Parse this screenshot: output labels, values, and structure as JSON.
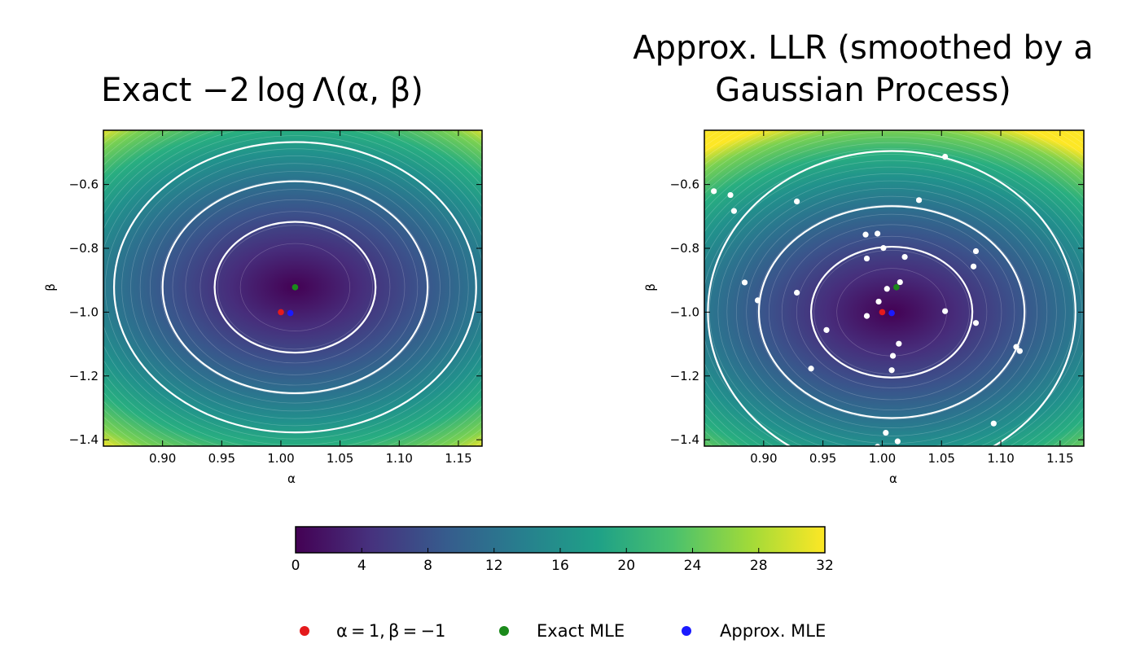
{
  "chart_data": [
    {
      "type": "heatmap",
      "title": "Exact −2 log Λ(α, β)",
      "xlabel": "α",
      "ylabel": "β",
      "xlim": [
        0.85,
        1.17
      ],
      "ylim": [
        -1.42,
        -0.43
      ],
      "xticks": [
        "0.90",
        "0.95",
        "1.00",
        "1.05",
        "1.10",
        "1.15"
      ],
      "yticks": [
        "−0.6",
        "−0.8",
        "−1.0",
        "−1.2",
        "−1.4"
      ],
      "field_center": {
        "alpha": 1.012,
        "beta": -0.922
      },
      "confidence_contours": [
        {
          "alpha_halfwidth": 0.068,
          "beta_halfwidth": 0.205
        },
        {
          "alpha_halfwidth": 0.112,
          "beta_halfwidth": 0.332
        },
        {
          "alpha_halfwidth": 0.153,
          "beta_halfwidth": 0.455
        }
      ],
      "points": [
        {
          "name": "truth",
          "alpha": 1.0,
          "beta": -1.0,
          "color": "#e41a1c"
        },
        {
          "name": "exact-mle",
          "alpha": 1.012,
          "beta": -0.922,
          "color": "#1b8a1b"
        },
        {
          "name": "approx-mle",
          "alpha": 1.008,
          "beta": -1.003,
          "color": "#1a1aff"
        }
      ]
    },
    {
      "type": "heatmap",
      "title_lines": [
        "Approx. LLR (smoothed by a",
        "Gaussian Process)"
      ],
      "xlabel": "α",
      "ylabel": "β",
      "xlim": [
        0.85,
        1.17
      ],
      "ylim": [
        -1.42,
        -0.43
      ],
      "xticks": [
        "0.90",
        "0.95",
        "1.00",
        "1.05",
        "1.10",
        "1.15"
      ],
      "yticks": [
        "−0.6",
        "−0.8",
        "−1.0",
        "−1.2",
        "−1.4"
      ],
      "field_center": {
        "alpha": 1.008,
        "beta": -1.0
      },
      "confidence_contours": [
        {
          "alpha_halfwidth": 0.068,
          "beta_halfwidth": 0.205
        },
        {
          "alpha_halfwidth": 0.112,
          "beta_halfwidth": 0.332
        },
        {
          "alpha_halfwidth": 0.155,
          "beta_halfwidth": 0.505
        }
      ],
      "sample_points": [
        [
          1.053,
          -0.513
        ],
        [
          0.858,
          -0.621
        ],
        [
          0.872,
          -0.633
        ],
        [
          0.875,
          -0.683
        ],
        [
          0.928,
          -0.653
        ],
        [
          1.031,
          -0.649
        ],
        [
          0.986,
          -0.757
        ],
        [
          0.996,
          -0.754
        ],
        [
          1.001,
          -0.799
        ],
        [
          1.079,
          -0.809
        ],
        [
          0.987,
          -0.832
        ],
        [
          1.019,
          -0.827
        ],
        [
          1.077,
          -0.857
        ],
        [
          0.884,
          -0.907
        ],
        [
          1.015,
          -0.906
        ],
        [
          1.004,
          -0.927
        ],
        [
          0.928,
          -0.939
        ],
        [
          0.895,
          -0.963
        ],
        [
          0.997,
          -0.967
        ],
        [
          1.053,
          -0.997
        ],
        [
          0.987,
          -1.012
        ],
        [
          1.079,
          -1.034
        ],
        [
          0.953,
          -1.056
        ],
        [
          1.014,
          -1.099
        ],
        [
          1.113,
          -1.109
        ],
        [
          1.116,
          -1.122
        ],
        [
          1.009,
          -1.137
        ],
        [
          0.94,
          -1.177
        ],
        [
          1.008,
          -1.182
        ],
        [
          1.094,
          -1.349
        ],
        [
          1.003,
          -1.378
        ],
        [
          1.013,
          -1.405
        ],
        [
          0.996,
          -1.422
        ]
      ],
      "points": [
        {
          "name": "truth",
          "alpha": 1.0,
          "beta": -1.0,
          "color": "#e41a1c"
        },
        {
          "name": "exact-mle",
          "alpha": 1.012,
          "beta": -0.922,
          "color": "#1b8a1b"
        },
        {
          "name": "approx-mle",
          "alpha": 1.008,
          "beta": -1.003,
          "color": "#1a1aff"
        }
      ]
    }
  ],
  "colorbar": {
    "range": [
      0,
      32
    ],
    "ticks": [
      "0",
      "4",
      "8",
      "12",
      "16",
      "20",
      "24",
      "28",
      "32"
    ],
    "colormap": "viridis",
    "colors": [
      "#440154",
      "#46327e",
      "#365c8d",
      "#277f8e",
      "#1fa187",
      "#4ac16d",
      "#a0da39",
      "#fde725"
    ]
  },
  "legend": {
    "items": [
      {
        "label": "α = 1, β = −1",
        "color": "#e41a1c"
      },
      {
        "label": "Exact MLE",
        "color": "#1b8a1b"
      },
      {
        "label": "Approx. MLE",
        "color": "#1a1aff"
      }
    ]
  }
}
